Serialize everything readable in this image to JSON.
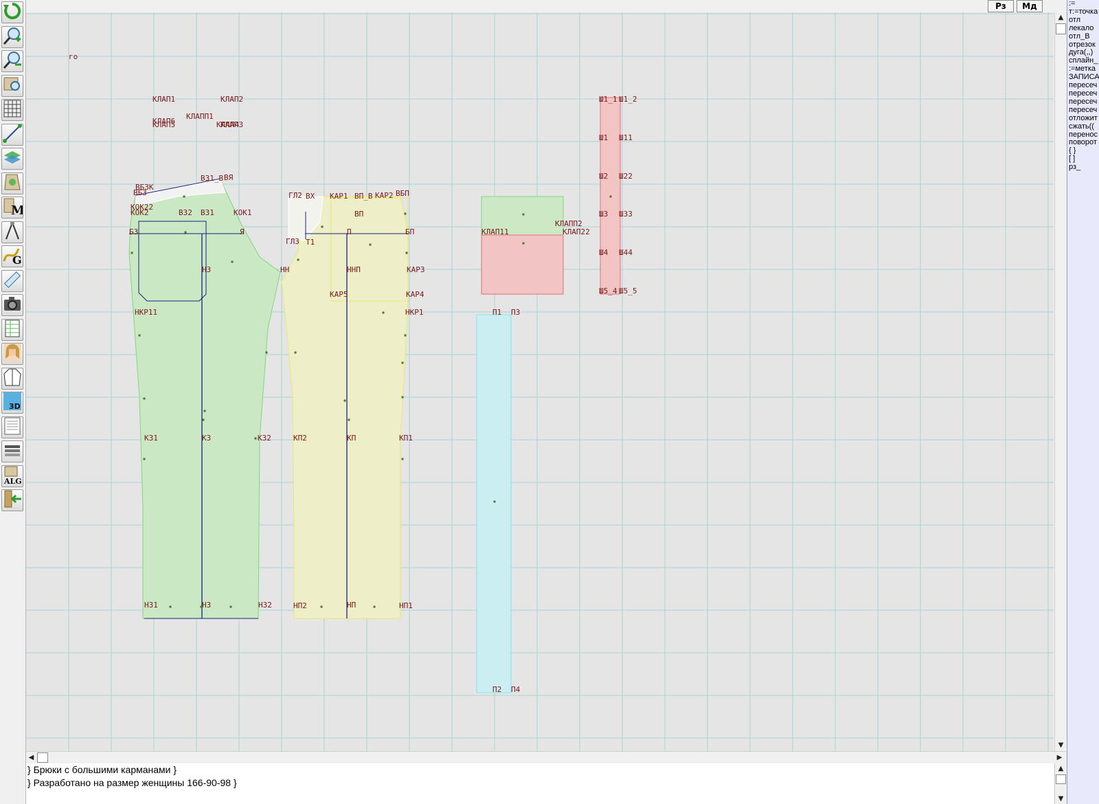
{
  "toolbar": {
    "items": [
      {
        "id": "undo",
        "icon": "undo-icon"
      },
      {
        "id": "zoom-in",
        "icon": "zoom-in-icon"
      },
      {
        "id": "zoom-out",
        "icon": "zoom-out-icon"
      },
      {
        "id": "map-zoom",
        "icon": "map-zoom-icon"
      },
      {
        "id": "grid",
        "icon": "grid-icon"
      },
      {
        "id": "line",
        "icon": "line-segment-icon"
      },
      {
        "id": "layers",
        "icon": "layers-icon"
      },
      {
        "id": "pattern",
        "icon": "pattern-icon"
      },
      {
        "id": "measures",
        "icon": "measures-m-icon"
      },
      {
        "id": "compass",
        "icon": "compass-icon"
      },
      {
        "id": "curve",
        "icon": "curve-g-icon"
      },
      {
        "id": "ruler",
        "icon": "ruler-icon"
      },
      {
        "id": "camera",
        "icon": "camera-icon"
      },
      {
        "id": "spreadsheet",
        "icon": "spreadsheet-icon"
      },
      {
        "id": "photo",
        "icon": "portrait-icon"
      },
      {
        "id": "jacket",
        "icon": "jacket-icon"
      },
      {
        "id": "3d",
        "icon": "3d-view-icon",
        "text": "3D"
      },
      {
        "id": "list",
        "icon": "document-list-icon"
      },
      {
        "id": "stack",
        "icon": "stack-icon"
      },
      {
        "id": "alg",
        "icon": "algorithm-icon",
        "text": "ALG"
      },
      {
        "id": "exit",
        "icon": "exit-icon"
      }
    ]
  },
  "topbar": {
    "rz_label": "Рз",
    "md_label": "Мд"
  },
  "side_panel": {
    "lines": [
      ":=",
      "т:=точка",
      "отл",
      "лекало",
      "отл_В",
      "отрезок",
      "дуга(,,)",
      "сплайн_",
      ":=метка",
      "ЗАПИСА",
      "пересеч",
      "пересеч",
      "пересеч",
      "пересеч",
      "отложит",
      "сжать((",
      "перенос",
      "поворот",
      "{ }",
      "[ ]",
      "рз_"
    ]
  },
  "notes": {
    "lines": [
      "} Брюки с большими карманами }",
      "} Разработано на размер женщины 166-90-98 }"
    ]
  },
  "canvas": {
    "labels": [
      "го",
      "КЛАП1",
      "КЛАП2",
      "КЛАПП1",
      "КЛАП6",
      "КЛАП5",
      "КЛАП4",
      "КЛАП3",
      "ВБЗК",
      "ВБЗ",
      "КОК22",
      "КОК2",
      "ВЗ2",
      "ВЗ1",
      "ВЗ1_В",
      "ВЯ",
      "КОК1",
      "БЗ",
      "Я",
      "НЗ",
      "НН",
      "НКР11",
      "КЗ1",
      "КЗ",
      "КЗ2",
      "НЗ1",
      "НЗ",
      "НЗ2",
      "ГЛ2",
      "ВХ",
      "КАР1",
      "ВП_В",
      "КАР2",
      "ВБП",
      "ВП",
      "П",
      "БП",
      "ГЛЗ",
      "Т1",
      "ННП",
      "КАР3",
      "КАР5",
      "КАР4",
      "НКР1",
      "КП2",
      "КП",
      "КП1",
      "НП2",
      "НП",
      "НП1",
      "КЛАП11",
      "КЛАПП2",
      "КЛАП22",
      "П1",
      "П3",
      "П2",
      "П4",
      "Ш1",
      "Ш2",
      "Ш3",
      "Ш4",
      "Ш11",
      "Ш22",
      "Ш33",
      "Ш44",
      "Ш1_1",
      "Ш1_2",
      "Ш5_4",
      "Ш5_5"
    ],
    "colors": {
      "background": "#e5e5e5",
      "grid": "#a9d4d4",
      "back_piece": "#cbe8c4",
      "front_piece": "#eeeec8",
      "red_piece": "#f2c4c4",
      "cyan_piece": "#cbeef2",
      "construction_line": "#1a237e",
      "label": "#7a1a1a"
    }
  }
}
